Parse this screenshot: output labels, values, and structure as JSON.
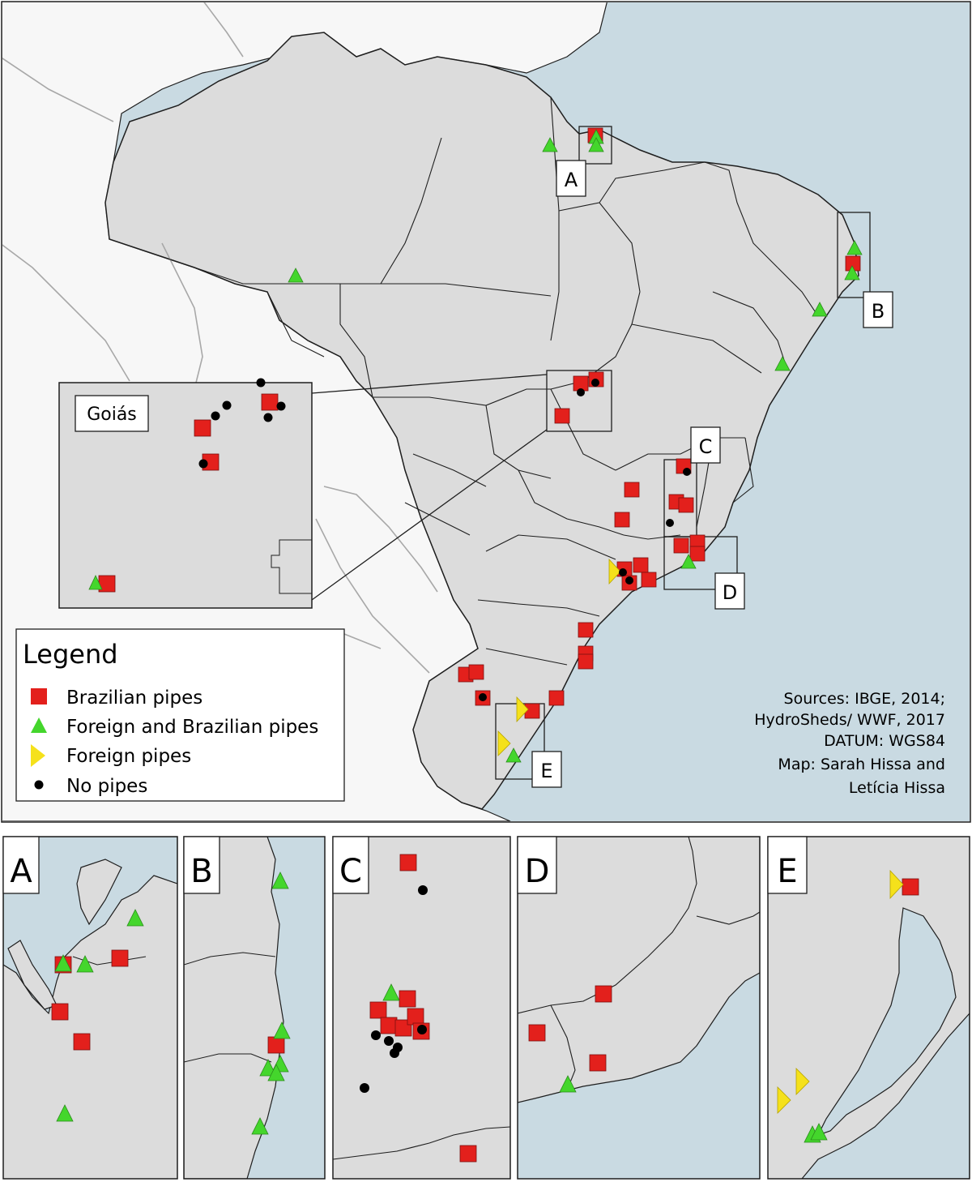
{
  "colors": {
    "ocean": "#c9dae2",
    "land": "#dcdcdc",
    "foreign_land": "#f7f7f7",
    "river": "#a8a8a8",
    "border": "#1e1e1e",
    "brazilian": "#e3201c",
    "foreign_and_brazilian": "#44d62c",
    "foreign": "#f5e11b",
    "none": "#000000"
  },
  "inset_goias": {
    "label": "Goiás"
  },
  "box_labels": [
    "A",
    "B",
    "C",
    "D",
    "E"
  ],
  "legend": {
    "title": "Legend",
    "items": [
      {
        "symbol": "square-icon",
        "label": "Brazilian pipes"
      },
      {
        "symbol": "triangle-icon",
        "label": "Foreign and Brazilian pipes"
      },
      {
        "symbol": "right-triangle-icon",
        "label": "Foreign pipes"
      },
      {
        "symbol": "circle-icon",
        "label": "No pipes"
      }
    ]
  },
  "sources": [
    "Sources: IBGE, 2014;",
    "HydroSheds/ WWF, 2017",
    "DATUM: WGS84",
    "Map: Sarah Hissa and",
    "Letícia Hissa"
  ],
  "panels": [
    {
      "label": "A"
    },
    {
      "label": "B"
    },
    {
      "label": "C"
    },
    {
      "label": "D"
    },
    {
      "label": "E"
    }
  ]
}
